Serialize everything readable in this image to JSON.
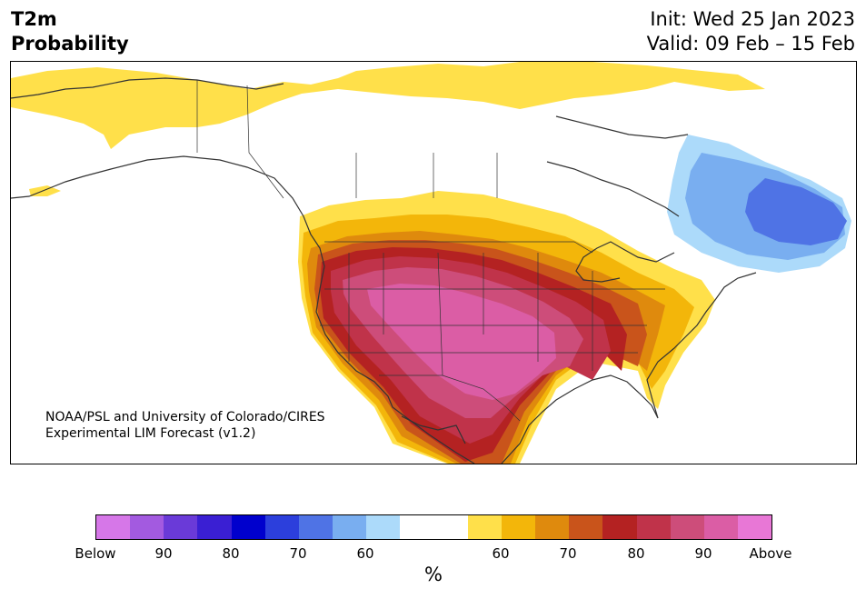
{
  "title": {
    "line1": "T2m",
    "line2": "Probability"
  },
  "dates": {
    "init": "Init: Wed 25 Jan 2023",
    "valid": "Valid: 09 Feb – 15 Feb"
  },
  "credit": {
    "line1": "NOAA/PSL and University of Colorado/CIRES",
    "line2": "Experimental LIM Forecast (v1.2)"
  },
  "colorbar": {
    "unit": "%",
    "colors": [
      "#d677e8",
      "#a35ae0",
      "#6a3ad8",
      "#3a1fd3",
      "#0000cd",
      "#2c3fdc",
      "#4f73e5",
      "#79aef0",
      "#acdafa",
      "#ffffff",
      "#ffffff",
      "#ffe04a",
      "#f3b60a",
      "#df8a0d",
      "#c9541b",
      "#b42222",
      "#c0334a",
      "#cd4d7a",
      "#db5da5",
      "#e877d6"
    ],
    "ticks": [
      "Below",
      "90",
      "80",
      "70",
      "60",
      "60",
      "70",
      "80",
      "90",
      "Above"
    ]
  },
  "colors": {
    "warm_50": "#ffe04a",
    "warm_60": "#f3b60a",
    "warm_70": "#df8a0d",
    "warm_75": "#c9541b",
    "warm_80": "#b42222",
    "warm_85": "#c0334a",
    "warm_90": "#cd4d7a",
    "warm_95": "#db5da5",
    "cold_50": "#acdafa",
    "cold_60": "#79aef0",
    "cold_70": "#4f73e5"
  }
}
